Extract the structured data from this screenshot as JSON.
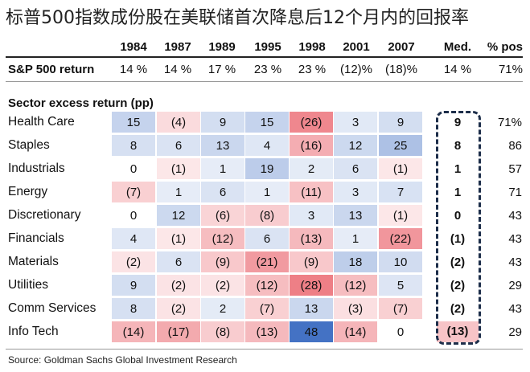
{
  "title": "标普500指数成份股在美联储首次降息后12个月内的回报率",
  "columns": [
    "1984",
    "1987",
    "1989",
    "1995",
    "1998",
    "2001",
    "2007",
    "Med.",
    "% pos"
  ],
  "sp500": {
    "label": "S&P 500 return",
    "values": [
      "14 %",
      "14 %",
      "17 %",
      "23 %",
      "23 %",
      "(12)%",
      "(18)%"
    ],
    "median": "14 %",
    "pos": "71%"
  },
  "sector_header": "Sector excess return (pp)",
  "source": "Source:  Goldman Sachs Global Investment Research",
  "chart_data": {
    "type": "table",
    "title": "标普500指数成份股在美联储首次降息后12个月内的回报率",
    "years": [
      "1984",
      "1987",
      "1989",
      "1995",
      "1998",
      "2001",
      "2007"
    ],
    "rows": [
      {
        "sector": "Health Care",
        "values": [
          15,
          -4,
          9,
          15,
          -26,
          3,
          9
        ],
        "median": 9,
        "pos": "71%"
      },
      {
        "sector": "Staples",
        "values": [
          8,
          6,
          13,
          4,
          -16,
          12,
          25
        ],
        "median": 8,
        "pos": "86"
      },
      {
        "sector": "Industrials",
        "values": [
          0,
          -1,
          1,
          19,
          2,
          6,
          -1
        ],
        "median": 1,
        "pos": "57"
      },
      {
        "sector": "Energy",
        "values": [
          -7,
          1,
          6,
          1,
          -11,
          3,
          7
        ],
        "median": 1,
        "pos": "71"
      },
      {
        "sector": "Discretionary",
        "values": [
          0,
          12,
          -6,
          -8,
          3,
          13,
          -1
        ],
        "median": 0,
        "pos": "43"
      },
      {
        "sector": "Financials",
        "values": [
          4,
          -1,
          -12,
          6,
          -13,
          1,
          -22
        ],
        "median": -1,
        "pos": "43"
      },
      {
        "sector": "Materials",
        "values": [
          -2,
          6,
          -9,
          -21,
          -9,
          18,
          10
        ],
        "median": -2,
        "pos": "43"
      },
      {
        "sector": "Utilities",
        "values": [
          9,
          -2,
          -2,
          -12,
          -28,
          -12,
          5
        ],
        "median": -2,
        "pos": "29"
      },
      {
        "sector": "Comm Services",
        "values": [
          8,
          -2,
          2,
          -7,
          13,
          -3,
          -7
        ],
        "median": -2,
        "pos": "43"
      },
      {
        "sector": "Info Tech",
        "values": [
          -14,
          -17,
          -8,
          -13,
          48,
          -14,
          0
        ],
        "median": -13,
        "pos": "29"
      }
    ],
    "colors": {
      "positive": "#4472c4",
      "negative": "#e8565f"
    }
  }
}
